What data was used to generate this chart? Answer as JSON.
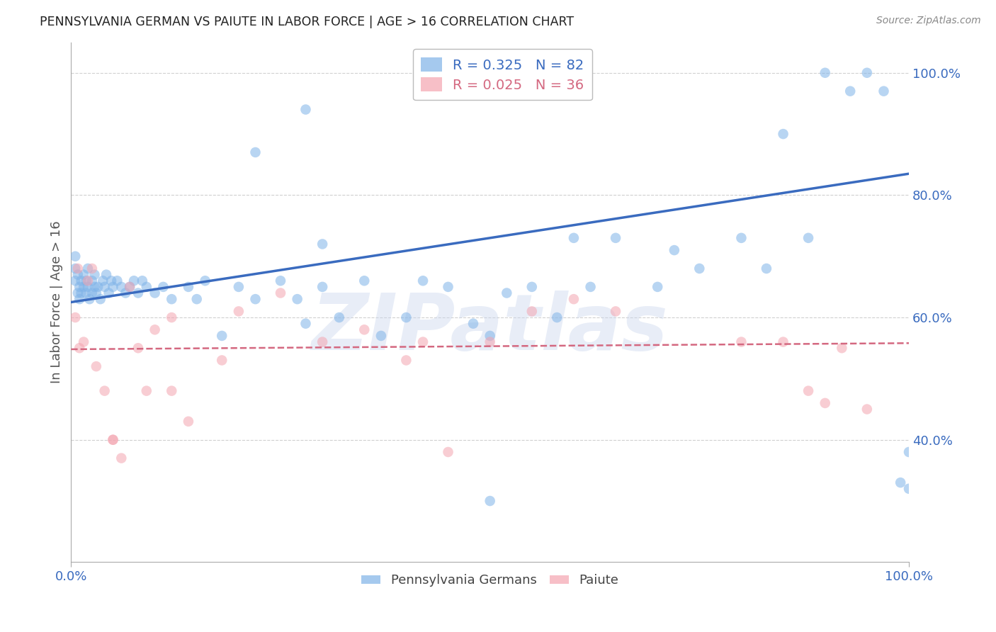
{
  "title": "PENNSYLVANIA GERMAN VS PAIUTE IN LABOR FORCE | AGE > 16 CORRELATION CHART",
  "source_text": "Source: ZipAtlas.com",
  "ylabel": "In Labor Force | Age > 16",
  "xlim": [
    0.0,
    1.0
  ],
  "ylim": [
    0.2,
    1.05
  ],
  "xtick_vals": [
    0.0,
    1.0
  ],
  "xtick_labels": [
    "0.0%",
    "100.0%"
  ],
  "ytick_positions": [
    0.4,
    0.6,
    0.8,
    1.0
  ],
  "ytick_labels": [
    "40.0%",
    "60.0%",
    "80.0%",
    "100.0%"
  ],
  "grid_color": "#d0d0d0",
  "bg_color": "#ffffff",
  "blue_color": "#7fb3e8",
  "pink_color": "#f4a4b0",
  "blue_line_color": "#3a6bbf",
  "pink_line_color": "#d46880",
  "tick_label_color": "#3a6bbf",
  "legend_blue_label": "R = 0.325   N = 82",
  "legend_pink_label": "R = 0.025   N = 36",
  "watermark_text": "ZIPatlas",
  "blue_line_y_start": 0.625,
  "blue_line_y_end": 0.835,
  "pink_line_y_start": 0.548,
  "pink_line_y_end": 0.558,
  "bottom_legend_labels": [
    "Pennsylvania Germans",
    "Paiute"
  ],
  "marker_size": 110,
  "blue_scatter_x": [
    0.005,
    0.005,
    0.005,
    0.008,
    0.008,
    0.01,
    0.01,
    0.012,
    0.012,
    0.015,
    0.015,
    0.018,
    0.018,
    0.02,
    0.02,
    0.022,
    0.025,
    0.025,
    0.028,
    0.028,
    0.03,
    0.032,
    0.035,
    0.038,
    0.04,
    0.042,
    0.045,
    0.048,
    0.05,
    0.055,
    0.06,
    0.065,
    0.07,
    0.075,
    0.08,
    0.085,
    0.09,
    0.1,
    0.11,
    0.12,
    0.14,
    0.15,
    0.16,
    0.18,
    0.2,
    0.22,
    0.25,
    0.27,
    0.28,
    0.3,
    0.32,
    0.35,
    0.37,
    0.4,
    0.42,
    0.45,
    0.48,
    0.5,
    0.52,
    0.55,
    0.58,
    0.6,
    0.62,
    0.65,
    0.7,
    0.72,
    0.75,
    0.8,
    0.83,
    0.85,
    0.88,
    0.9,
    0.93,
    0.95,
    0.97,
    0.99,
    1.0,
    1.0,
    0.28,
    0.3,
    0.5,
    0.22
  ],
  "blue_scatter_y": [
    0.66,
    0.68,
    0.7,
    0.64,
    0.67,
    0.63,
    0.65,
    0.66,
    0.64,
    0.67,
    0.65,
    0.64,
    0.66,
    0.65,
    0.68,
    0.63,
    0.66,
    0.64,
    0.65,
    0.67,
    0.64,
    0.65,
    0.63,
    0.66,
    0.65,
    0.67,
    0.64,
    0.66,
    0.65,
    0.66,
    0.65,
    0.64,
    0.65,
    0.66,
    0.64,
    0.66,
    0.65,
    0.64,
    0.65,
    0.63,
    0.65,
    0.63,
    0.66,
    0.57,
    0.65,
    0.63,
    0.66,
    0.63,
    0.59,
    0.65,
    0.6,
    0.66,
    0.57,
    0.6,
    0.66,
    0.65,
    0.59,
    0.57,
    0.64,
    0.65,
    0.6,
    0.73,
    0.65,
    0.73,
    0.65,
    0.71,
    0.68,
    0.73,
    0.68,
    0.9,
    0.73,
    1.0,
    0.97,
    1.0,
    0.97,
    0.33,
    0.32,
    0.38,
    0.94,
    0.72,
    0.3,
    0.87
  ],
  "pink_scatter_x": [
    0.005,
    0.008,
    0.01,
    0.015,
    0.02,
    0.025,
    0.03,
    0.04,
    0.05,
    0.06,
    0.07,
    0.09,
    0.1,
    0.12,
    0.14,
    0.18,
    0.2,
    0.25,
    0.3,
    0.35,
    0.4,
    0.42,
    0.45,
    0.5,
    0.55,
    0.6,
    0.65,
    0.8,
    0.85,
    0.88,
    0.9,
    0.92,
    0.95,
    0.05,
    0.08,
    0.12
  ],
  "pink_scatter_y": [
    0.6,
    0.68,
    0.55,
    0.56,
    0.66,
    0.68,
    0.52,
    0.48,
    0.4,
    0.37,
    0.65,
    0.48,
    0.58,
    0.48,
    0.43,
    0.53,
    0.61,
    0.64,
    0.56,
    0.58,
    0.53,
    0.56,
    0.38,
    0.56,
    0.61,
    0.63,
    0.61,
    0.56,
    0.56,
    0.48,
    0.46,
    0.55,
    0.45,
    0.4,
    0.55,
    0.6
  ]
}
